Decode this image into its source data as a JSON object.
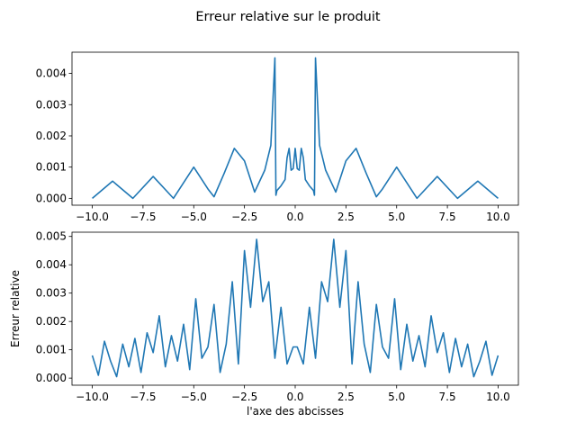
{
  "figure": {
    "title": "Erreur relative sur le produit"
  },
  "colors": {
    "line": "#1f77b4",
    "axes": "#000000",
    "background": "#ffffff"
  },
  "chart_data": [
    {
      "type": "line",
      "title": "",
      "xlabel": "",
      "ylabel": "",
      "xlim": [
        -11,
        11
      ],
      "ylim": [
        -0.00022,
        0.00468
      ],
      "grid": false,
      "xticks": [
        -10.0,
        -7.5,
        -5.0,
        -2.5,
        0.0,
        2.5,
        5.0,
        7.5,
        10.0
      ],
      "xtick_labels": [
        "−10.0",
        "−7.5",
        "−5.0",
        "−2.5",
        "0.0",
        "2.5",
        "5.0",
        "7.5",
        "10.0"
      ],
      "yticks": [
        0.0,
        0.001,
        0.002,
        0.003,
        0.004
      ],
      "ytick_labels": [
        "0.000",
        "0.001",
        "0.002",
        "0.003",
        "0.004"
      ],
      "series": [
        {
          "x": [
            -10,
            -9,
            -8,
            -7,
            -6,
            -5,
            -4.3,
            -4,
            -3.5,
            -3,
            -2.5,
            -2.2,
            -2,
            -1.5,
            -1.2,
            -1.0,
            -0.95,
            -0.9,
            -0.7,
            -0.5,
            -0.4,
            -0.3,
            -0.2,
            -0.1,
            0,
            0.1,
            0.2,
            0.3,
            0.4,
            0.5,
            0.7,
            0.9,
            0.95,
            1.0,
            1.2,
            1.5,
            2,
            2.2,
            2.5,
            3,
            3.5,
            4,
            4.3,
            5,
            6,
            7,
            8,
            9,
            10
          ],
          "y": [
            0.0,
            0.00055,
            0.0,
            0.0007,
            0.0,
            0.001,
            0.0003,
            5e-05,
            0.0008,
            0.0016,
            0.0012,
            0.0006,
            0.0002,
            0.0009,
            0.0017,
            0.0045,
            0.0001,
            0.00025,
            0.0004,
            0.0006,
            0.0013,
            0.0016,
            0.0009,
            0.00095,
            0.0016,
            0.00095,
            0.0009,
            0.0016,
            0.0013,
            0.0006,
            0.0004,
            0.00025,
            0.0001,
            0.0045,
            0.0017,
            0.0009,
            0.0002,
            0.0006,
            0.0012,
            0.0016,
            0.0008,
            5e-05,
            0.0003,
            0.001,
            0.0,
            0.0007,
            0.0,
            0.00055,
            0.0
          ]
        }
      ]
    },
    {
      "type": "line",
      "title": "",
      "xlabel": "l'axe des abcisses",
      "ylabel": "Erreur relative",
      "xlim": [
        -11,
        11
      ],
      "ylim": [
        -0.00025,
        0.00515
      ],
      "grid": false,
      "xticks": [
        -10.0,
        -7.5,
        -5.0,
        -2.5,
        0.0,
        2.5,
        5.0,
        7.5,
        10.0
      ],
      "xtick_labels": [
        "−10.0",
        "−7.5",
        "−5.0",
        "−2.5",
        "0.0",
        "2.5",
        "5.0",
        "7.5",
        "10.0"
      ],
      "yticks": [
        0.0,
        0.001,
        0.002,
        0.003,
        0.004,
        0.005
      ],
      "ytick_labels": [
        "0.000",
        "0.001",
        "0.002",
        "0.003",
        "0.004",
        "0.005"
      ],
      "series": [
        {
          "x": [
            -10,
            -9.7,
            -9.4,
            -9.1,
            -8.8,
            -8.5,
            -8.2,
            -7.9,
            -7.6,
            -7.3,
            -7.0,
            -6.7,
            -6.4,
            -6.1,
            -5.8,
            -5.5,
            -5.2,
            -4.9,
            -4.6,
            -4.3,
            -4.0,
            -3.7,
            -3.4,
            -3.1,
            -2.8,
            -2.5,
            -2.2,
            -1.9,
            -1.6,
            -1.3,
            -1.0,
            -0.7,
            -0.4,
            -0.1,
            0.1,
            0.4,
            0.7,
            1.0,
            1.3,
            1.6,
            1.9,
            2.2,
            2.5,
            2.8,
            3.1,
            3.4,
            3.7,
            4.0,
            4.3,
            4.6,
            4.9,
            5.2,
            5.5,
            5.8,
            6.1,
            6.4,
            6.7,
            7.0,
            7.3,
            7.6,
            7.9,
            8.2,
            8.5,
            8.8,
            9.1,
            9.4,
            9.7,
            10
          ],
          "y": [
            0.0008,
            0.0001,
            0.0013,
            0.0006,
            5e-05,
            0.0012,
            0.0004,
            0.0014,
            0.0002,
            0.0016,
            0.0009,
            0.0022,
            0.0004,
            0.0015,
            0.0006,
            0.0019,
            0.0003,
            0.0028,
            0.0007,
            0.0011,
            0.0026,
            0.0002,
            0.0012,
            0.0034,
            0.0005,
            0.0045,
            0.0025,
            0.0049,
            0.0027,
            0.0034,
            0.0007,
            0.0025,
            0.0005,
            0.0011,
            0.0011,
            0.0005,
            0.0025,
            0.0007,
            0.0034,
            0.0027,
            0.0049,
            0.0025,
            0.0045,
            0.0005,
            0.0034,
            0.0012,
            0.0002,
            0.0026,
            0.0011,
            0.0007,
            0.0028,
            0.0003,
            0.0019,
            0.0006,
            0.0015,
            0.0004,
            0.0022,
            0.0009,
            0.0016,
            0.0002,
            0.0014,
            0.0004,
            0.0012,
            5e-05,
            0.0006,
            0.0013,
            0.0001,
            0.0008
          ]
        }
      ]
    }
  ]
}
